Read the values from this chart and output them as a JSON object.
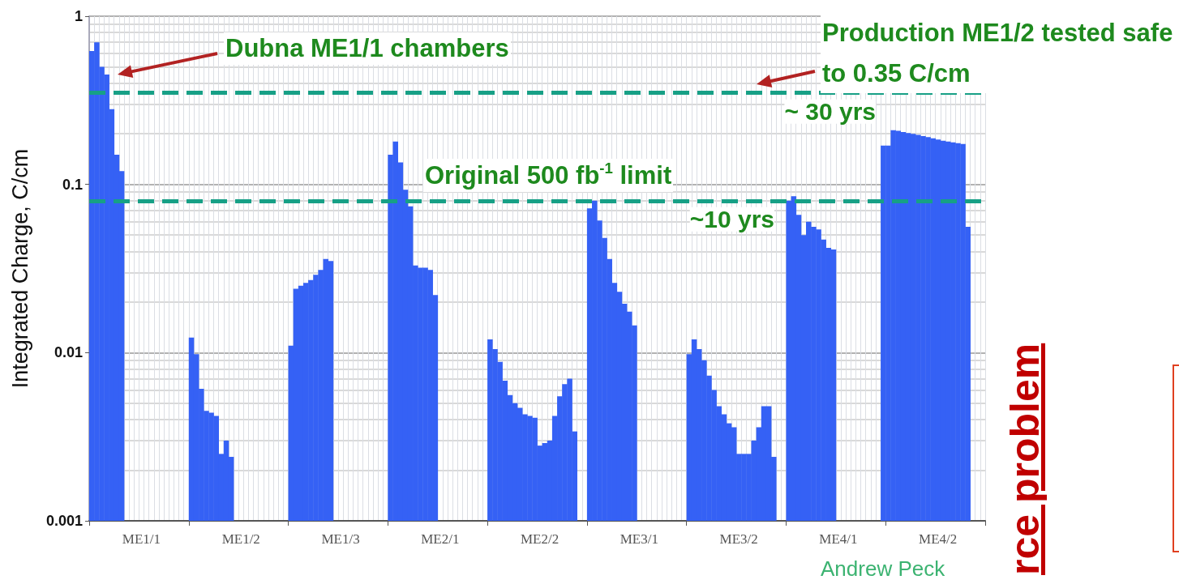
{
  "chart_data": {
    "type": "bar",
    "ylabel": "Integrated Charge, C/cm",
    "color": "#3561f5",
    "log": true,
    "grid": true,
    "categories": [
      null,
      null,
      null,
      null,
      null,
      null,
      null,
      null,
      null,
      null,
      "ME1/1",
      null,
      null,
      null,
      null,
      null,
      null,
      null,
      null,
      null,
      null,
      null,
      null,
      null,
      null,
      null,
      null,
      null,
      null,
      null,
      "ME1/2",
      null,
      null,
      null,
      null,
      null,
      null,
      null,
      null,
      null,
      null,
      null,
      null,
      null,
      null,
      null,
      null,
      null,
      null,
      null,
      "ME1/3",
      null,
      null,
      null,
      null,
      null,
      null,
      null,
      null,
      null,
      null,
      null,
      null,
      null,
      null,
      null,
      null,
      null,
      null,
      null,
      "ME2/1",
      null,
      null,
      null,
      null,
      null,
      null,
      null,
      null,
      null,
      null,
      null,
      null,
      null,
      null,
      null,
      null,
      null,
      null,
      null,
      "ME2/2",
      null,
      null,
      null,
      null,
      null,
      null,
      null,
      null,
      null,
      null,
      null,
      null,
      null,
      null,
      null,
      null,
      null,
      null,
      null,
      "ME3/1",
      null,
      null,
      null,
      null,
      null,
      null,
      null,
      null,
      null,
      null,
      null,
      null,
      null,
      null,
      null,
      null,
      null,
      null,
      null,
      "ME3/2",
      null,
      null,
      null,
      null,
      null,
      null,
      null,
      null,
      null,
      null,
      null,
      null,
      null,
      null,
      null,
      null,
      null,
      null,
      null,
      "ME4/1",
      null,
      null,
      null,
      null,
      null,
      null,
      null,
      null,
      null,
      null,
      null,
      null,
      null,
      null,
      null,
      null,
      null,
      null,
      null,
      "ME4/2",
      null,
      null,
      null,
      null,
      null,
      null,
      null,
      null,
      null
    ],
    "ylim": [
      0.001,
      1
    ],
    "yticks": [
      0.001,
      0.01,
      0.1,
      1
    ],
    "values": [
      0.62,
      0.7,
      0.5,
      0.45,
      0.28,
      0.15,
      0.12,
      null,
      null,
      null,
      null,
      null,
      null,
      null,
      null,
      null,
      null,
      null,
      null,
      null,
      0.0123,
      0.0098,
      0.0061,
      0.0045,
      0.0044,
      0.0042,
      0.0025,
      0.003,
      0.0024,
      null,
      null,
      null,
      null,
      null,
      null,
      null,
      null,
      null,
      null,
      null,
      0.011,
      0.024,
      0.025,
      0.026,
      0.027,
      0.029,
      0.031,
      0.036,
      0.035,
      null,
      null,
      null,
      null,
      null,
      null,
      null,
      null,
      null,
      null,
      null,
      0.15,
      0.18,
      0.135,
      0.093,
      0.074,
      0.033,
      0.032,
      0.032,
      0.031,
      0.022,
      null,
      null,
      null,
      null,
      null,
      null,
      null,
      null,
      null,
      null,
      0.012,
      0.0105,
      0.0088,
      0.0068,
      0.0056,
      0.005,
      0.0047,
      0.0043,
      0.0042,
      0.0041,
      0.0028,
      0.0029,
      0.003,
      0.0042,
      0.0055,
      0.0065,
      0.007,
      0.0034,
      null,
      null,
      0.072,
      0.08,
      0.061,
      0.048,
      0.036,
      0.026,
      0.023,
      0.0195,
      0.0175,
      0.0145,
      null,
      null,
      null,
      null,
      null,
      null,
      null,
      null,
      null,
      null,
      0.0098,
      0.012,
      0.0105,
      0.009,
      0.0073,
      0.006,
      0.0048,
      0.0043,
      0.0038,
      0.0036,
      0.0025,
      0.0025,
      0.0025,
      0.003,
      0.0036,
      0.0048,
      0.0048,
      0.0024,
      null,
      null,
      0.08,
      0.085,
      0.066,
      0.05,
      0.06,
      0.056,
      0.054,
      0.047,
      0.042,
      0.041,
      null,
      null,
      null,
      null,
      null,
      null,
      null,
      null,
      null,
      0.17,
      0.17,
      0.21,
      0.208,
      0.205,
      0.202,
      0.2,
      0.197,
      0.194,
      0.191,
      0.188,
      0.185,
      0.182,
      0.18,
      0.178,
      0.176,
      0.174,
      0.056,
      null,
      null,
      null
    ],
    "ref_lines": [
      {
        "axis": "y",
        "value": 0.35,
        "label": "~ 30 yrs",
        "color": "#17a086",
        "line_style": "dashed"
      },
      {
        "axis": "y",
        "value": 0.08,
        "label": "~10 yrs",
        "color": "#17a086",
        "line_style": "dashed"
      }
    ],
    "annotations": [
      "Dubna ME1/1 chambers",
      "Production ME1/2 tested safe to 0.35 C/cm",
      "Original 500 fb$^{-1}$ limit",
      "Andrew Peck",
      "rce problem"
    ]
  }
}
